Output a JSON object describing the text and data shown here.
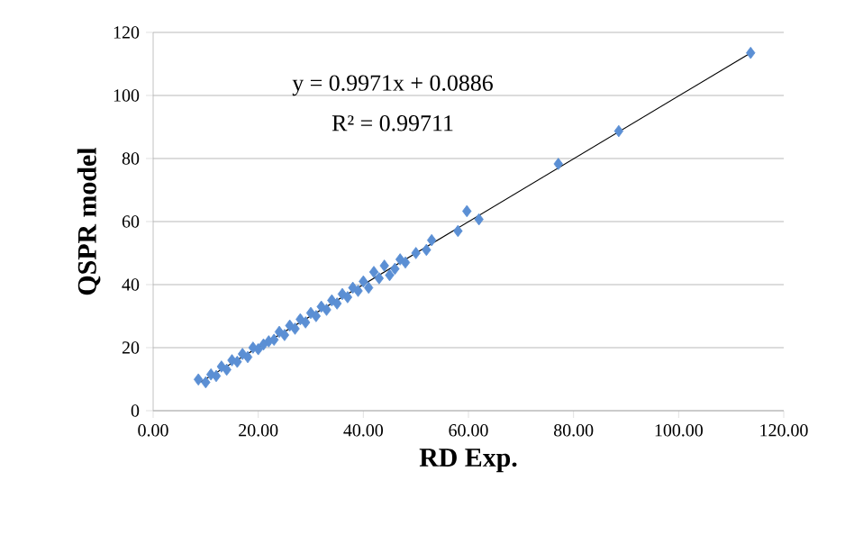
{
  "chart_data": {
    "type": "scatter",
    "xlabel": "RD Exp.",
    "ylabel": "QSPR model",
    "annotations": [
      "y = 0.9971x + 0.0886",
      "R² = 0.99711"
    ],
    "xlim": [
      0,
      120
    ],
    "ylim": [
      0,
      120
    ],
    "xticks": [
      {
        "value": 0,
        "label": "0.00"
      },
      {
        "value": 20,
        "label": "20.00"
      },
      {
        "value": 40,
        "label": "40.00"
      },
      {
        "value": 60,
        "label": "60.00"
      },
      {
        "value": 80,
        "label": "80.00"
      },
      {
        "value": 100,
        "label": "100.00"
      },
      {
        "value": 120,
        "label": "120.00"
      }
    ],
    "yticks": [
      0,
      20,
      40,
      60,
      80,
      100,
      120
    ],
    "grid": "y",
    "marker": "diamond",
    "series": [
      {
        "color": "#5b8fd4",
        "x": [
          8.6,
          10,
          11,
          12,
          13,
          14,
          15,
          16,
          17,
          18,
          19,
          20,
          21,
          22,
          23,
          24,
          25,
          26,
          27,
          28,
          29,
          30,
          31,
          32,
          33,
          34,
          35,
          36,
          37,
          38,
          39,
          40,
          41,
          42,
          43,
          44,
          45,
          46,
          47,
          48,
          50,
          52,
          53,
          58,
          59.7,
          62,
          77.1,
          88.6,
          113.7
        ],
        "values": [
          9.9,
          9,
          11.5,
          11,
          14,
          13,
          16,
          15.5,
          18,
          17,
          20,
          19.5,
          21,
          22,
          22.5,
          25,
          24,
          27,
          26,
          29,
          28,
          31,
          30,
          33,
          32,
          35,
          34,
          37,
          36,
          39,
          38,
          41,
          39,
          44,
          42,
          46,
          43,
          45,
          48,
          47,
          50,
          51,
          54.1,
          57,
          63.3,
          60.7,
          78.3,
          88.7,
          113.5
        ]
      },
      {
        "type": "line",
        "color": "#000000",
        "marker": "none",
        "x": [
          9,
          114
        ],
        "values": [
          9.1,
          113.8
        ]
      }
    ]
  }
}
